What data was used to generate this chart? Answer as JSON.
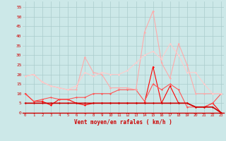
{
  "title": "",
  "xlabel": "Vent moyen/en rafales ( km/h )",
  "ylabel": "",
  "bg_color": "#cce8e8",
  "grid_color": "#aacccc",
  "x_ticks": [
    0,
    1,
    2,
    3,
    4,
    5,
    6,
    7,
    8,
    9,
    10,
    11,
    12,
    13,
    14,
    15,
    16,
    17,
    18,
    19,
    20,
    21,
    22,
    23
  ],
  "y_ticks": [
    0,
    5,
    10,
    15,
    20,
    25,
    30,
    35,
    40,
    45,
    50,
    55
  ],
  "xlim": [
    -0.3,
    23.3
  ],
  "ylim": [
    0,
    58
  ],
  "series": [
    {
      "color": "#ff0000",
      "alpha": 1.0,
      "linewidth": 0.8,
      "markersize": 1.5,
      "data_x": [
        0,
        1,
        2,
        3,
        4,
        5,
        6,
        7,
        8,
        9,
        10,
        11,
        12,
        13,
        14,
        15,
        16,
        17,
        18,
        19,
        20,
        21,
        22,
        23
      ],
      "data_y": [
        10,
        6,
        6,
        4,
        7,
        7,
        5,
        4,
        5,
        5,
        5,
        5,
        5,
        5,
        5,
        24,
        5,
        14,
        5,
        5,
        3,
        3,
        5,
        0
      ]
    },
    {
      "color": "#ff5555",
      "alpha": 1.0,
      "linewidth": 0.8,
      "markersize": 1.5,
      "data_x": [
        0,
        1,
        2,
        3,
        4,
        5,
        6,
        7,
        8,
        9,
        10,
        11,
        12,
        13,
        14,
        15,
        16,
        17,
        18,
        19,
        20,
        21,
        22,
        23
      ],
      "data_y": [
        10,
        6,
        7,
        8,
        7,
        7,
        8,
        8,
        10,
        10,
        10,
        12,
        12,
        12,
        6,
        15,
        12,
        15,
        12,
        3,
        3,
        3,
        5,
        10
      ]
    },
    {
      "color": "#ffaaaa",
      "alpha": 1.0,
      "linewidth": 0.8,
      "markersize": 1.5,
      "data_x": [
        0,
        1,
        2,
        3,
        4,
        5,
        6,
        7,
        8,
        9,
        10,
        11,
        12,
        13,
        14,
        15,
        16,
        17,
        18,
        19,
        20,
        21,
        22,
        23
      ],
      "data_y": [
        19,
        20,
        16,
        14,
        13,
        12,
        12,
        29,
        21,
        20,
        13,
        13,
        13,
        12,
        42,
        53,
        26,
        18,
        36,
        25,
        10,
        10,
        10,
        10
      ]
    },
    {
      "color": "#ffcccc",
      "alpha": 1.0,
      "linewidth": 0.8,
      "markersize": 1.5,
      "data_x": [
        0,
        1,
        2,
        3,
        4,
        5,
        6,
        7,
        8,
        9,
        10,
        11,
        12,
        13,
        14,
        15,
        16,
        17,
        18,
        19,
        20,
        21,
        22,
        23
      ],
      "data_y": [
        19,
        20,
        16,
        14,
        13,
        12,
        14,
        21,
        19,
        21,
        20,
        20,
        22,
        26,
        30,
        32,
        28,
        36,
        30,
        21,
        21,
        15,
        10,
        10
      ]
    },
    {
      "color": "#cc0000",
      "alpha": 1.0,
      "linewidth": 1.2,
      "markersize": 1.5,
      "data_x": [
        0,
        1,
        2,
        3,
        4,
        5,
        6,
        7,
        8,
        9,
        10,
        11,
        12,
        13,
        14,
        15,
        16,
        17,
        18,
        19,
        20,
        21,
        22,
        23
      ],
      "data_y": [
        5,
        5,
        5,
        5,
        5,
        5,
        5,
        5,
        5,
        5,
        5,
        5,
        5,
        5,
        5,
        5,
        5,
        5,
        5,
        5,
        3,
        3,
        3,
        0
      ]
    }
  ],
  "xlabel_fontsize": 5.5,
  "xlabel_color": "#cc0000",
  "tick_fontsize_x": 4.0,
  "tick_fontsize_y": 4.5
}
